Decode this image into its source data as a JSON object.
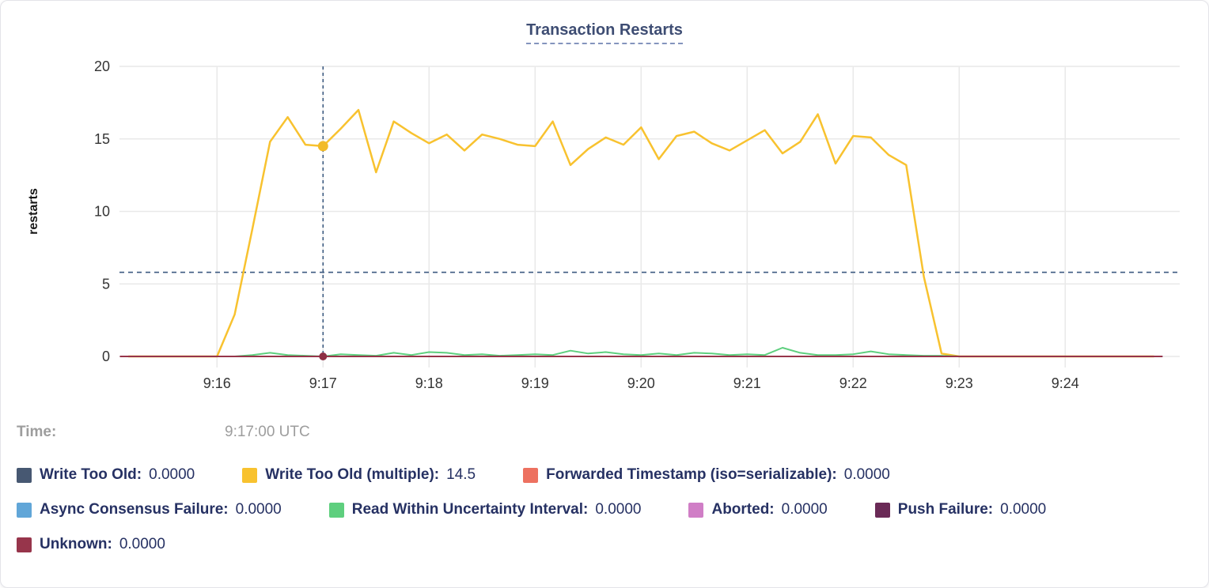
{
  "chart_data": {
    "type": "line",
    "title": "Transaction Restarts",
    "ylabel": "restarts",
    "ylim": [
      0,
      20
    ],
    "yticks": [
      0,
      5,
      10,
      15,
      20
    ],
    "grid": true,
    "legend_position": "bottom",
    "x_axis": {
      "domain_offset_min": [
        0.08,
        10.08
      ],
      "ticks": [
        {
          "offset_min": 1,
          "label": "9:16"
        },
        {
          "offset_min": 2,
          "label": "9:17"
        },
        {
          "offset_min": 3,
          "label": "9:18"
        },
        {
          "offset_min": 4,
          "label": "9:19"
        },
        {
          "offset_min": 5,
          "label": "9:20"
        },
        {
          "offset_min": 6,
          "label": "9:21"
        },
        {
          "offset_min": 7,
          "label": "9:22"
        },
        {
          "offset_min": 8,
          "label": "9:23"
        },
        {
          "offset_min": 9,
          "label": "9:24"
        }
      ]
    },
    "samples": {
      "start_offset_min": 0.16667,
      "step_min": 0.16667,
      "flat_extent_min": [
        0.084,
        9.917
      ]
    },
    "crosshair": {
      "offset_min": 2,
      "time_label": "9:17:00 UTC",
      "hline_value": 5.8,
      "dots": [
        {
          "series": "Write Too Old (multiple)",
          "value": 14.5,
          "color": "#f2bb28",
          "r": 6.5
        },
        {
          "series": "Unknown",
          "value": 0,
          "color": "#8e2f44",
          "r": 5
        }
      ]
    },
    "style": {
      "grid_color": "#e9e9e9",
      "tick_color": "#343434",
      "axis_label_color": "#151515",
      "crosshair_color": "#3c5a80"
    },
    "series": [
      {
        "name": "Write Too Old",
        "color": "#475872",
        "legend_value": "0.0000",
        "flat_zero": true
      },
      {
        "name": "Write Too Old (multiple)",
        "color": "#F8C22F",
        "legend_value": "14.5",
        "width": 2.5,
        "values": [
          0,
          0,
          0,
          0,
          0,
          0,
          2.9,
          8.8,
          14.8,
          16.5,
          14.6,
          14.5,
          15.7,
          17,
          12.7,
          16.2,
          15.4,
          14.7,
          15.3,
          14.2,
          15.3,
          15,
          14.6,
          14.5,
          16.2,
          13.2,
          14.3,
          15.1,
          14.6,
          15.8,
          13.6,
          15.2,
          15.5,
          14.7,
          14.2,
          14.9,
          15.6,
          14,
          14.8,
          16.7,
          13.3,
          15.2,
          15.1,
          13.9,
          13.2,
          5.5,
          0.2,
          0,
          0,
          0,
          0,
          0,
          0,
          0,
          0,
          0,
          0,
          0,
          0
        ]
      },
      {
        "name": "Forwarded Timestamp (iso=serializable)",
        "color": "#ED7160",
        "legend_value": "0.0000",
        "flat_zero": true
      },
      {
        "name": "Async Consensus Failure",
        "color": "#61A6D8",
        "legend_value": "0.0000",
        "flat_zero": true
      },
      {
        "name": "Read Within Uncertainty Interval",
        "color": "#5ECF7E",
        "legend_value": "0.0000",
        "width": 2,
        "values": [
          0,
          0,
          0,
          0,
          0,
          0,
          0,
          0.1,
          0.25,
          0.1,
          0.05,
          0,
          0.15,
          0.1,
          0.05,
          0.25,
          0.1,
          0.3,
          0.25,
          0.1,
          0.15,
          0.05,
          0.1,
          0.15,
          0.1,
          0.4,
          0.2,
          0.3,
          0.15,
          0.1,
          0.2,
          0.1,
          0.25,
          0.2,
          0.1,
          0.15,
          0.1,
          0.6,
          0.25,
          0.1,
          0.1,
          0.15,
          0.35,
          0.15,
          0.1,
          0.05,
          0.05,
          0,
          0,
          0,
          0,
          0,
          0,
          0,
          0,
          0,
          0,
          0,
          0
        ]
      },
      {
        "name": "Aborted",
        "color": "#D07EC6",
        "legend_value": "0.0000",
        "flat_zero": true
      },
      {
        "name": "Push Failure",
        "color": "#6A2A56",
        "legend_value": "0.0000",
        "flat_zero": true
      },
      {
        "name": "Unknown",
        "color": "#97354B",
        "legend_value": "0.0000",
        "flat_zero": true
      }
    ]
  },
  "time_row": {
    "label": "Time:",
    "value": "9:17:00 UTC"
  }
}
